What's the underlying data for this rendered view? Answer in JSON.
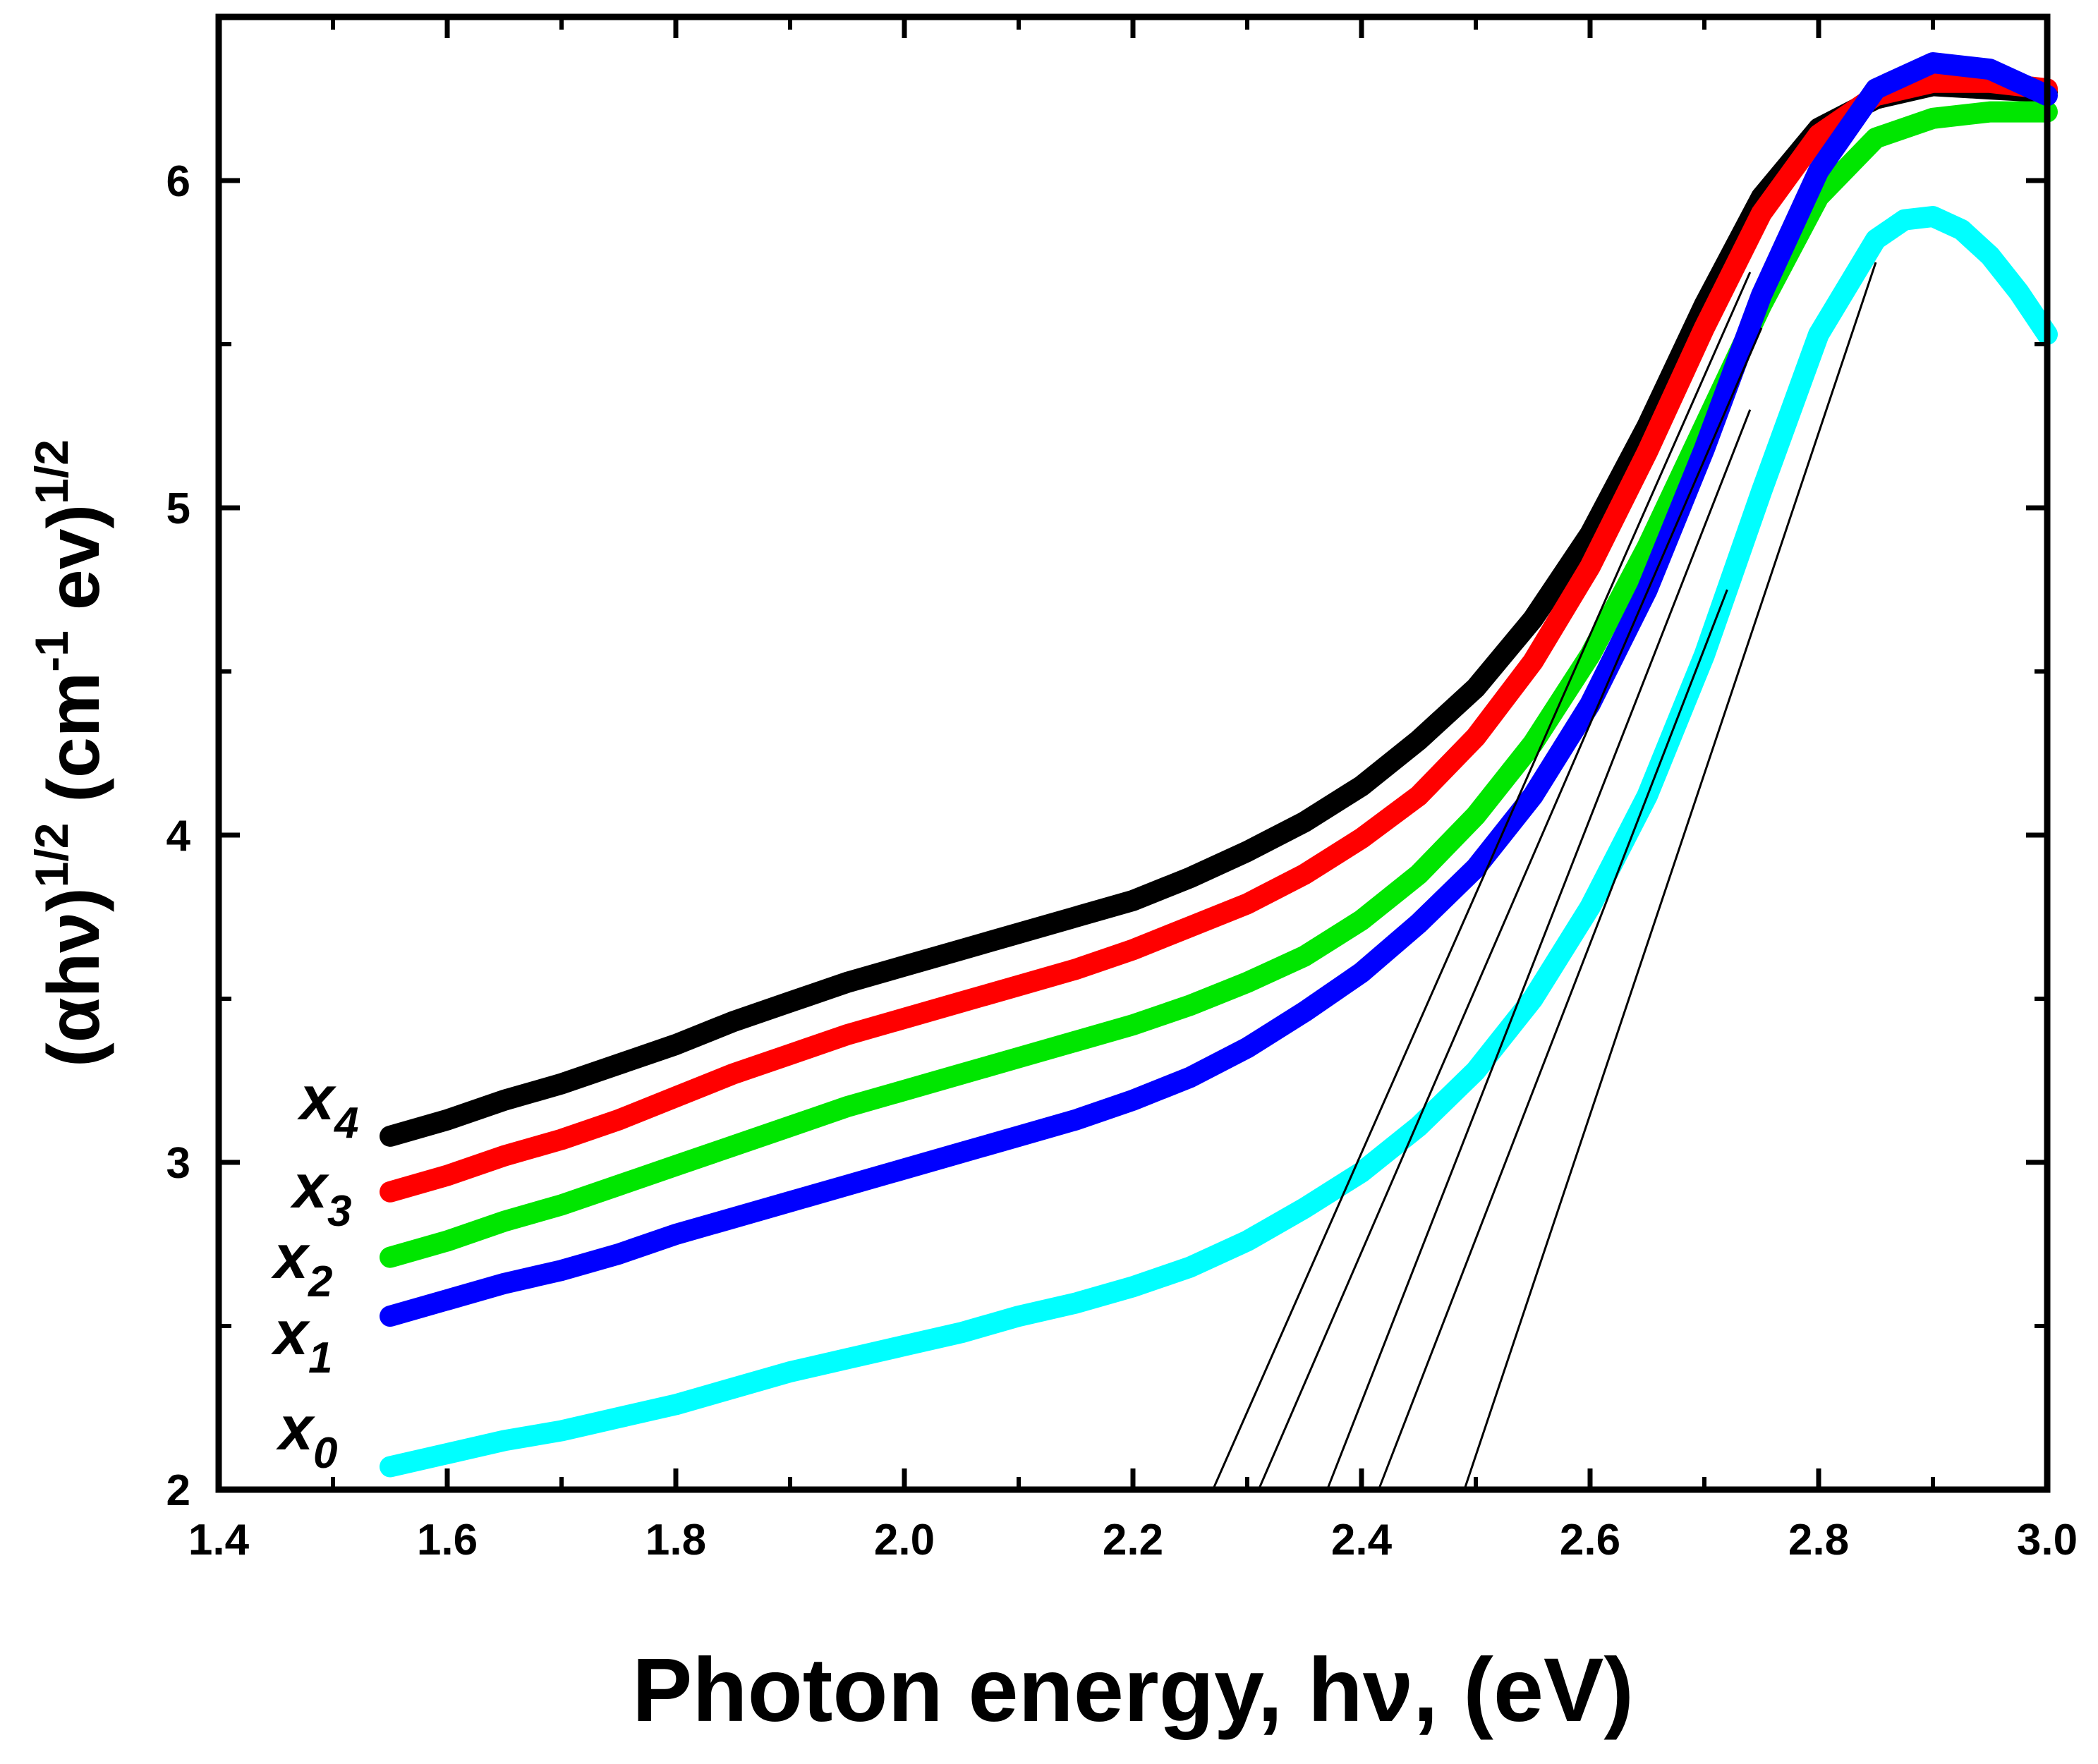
{
  "chart_data": {
    "type": "line",
    "xlabel": "Photon energy, hν,  (eV)",
    "ylabel": {
      "base": "(αhν)",
      "sup1": "1/2",
      "unit_open": " (cm",
      "unit_sup": "-1",
      "unit_close": " ev)",
      "sup2": "1/2"
    },
    "xlim": [
      1.4,
      3.0
    ],
    "ylim": [
      2,
      6.5
    ],
    "xticks": [
      1.4,
      1.6,
      1.8,
      2.0,
      2.2,
      2.4,
      2.6,
      2.8,
      3.0
    ],
    "xtick_labels": [
      "1.4",
      "1.6",
      "1.8",
      "2.0",
      "2.2",
      "2.4",
      "2.6",
      "2.8",
      "3.0"
    ],
    "yticks": [
      2,
      3,
      4,
      5,
      6
    ],
    "ytick_labels": [
      "2",
      "3",
      "4",
      "5",
      "6"
    ],
    "grid": false,
    "series": [
      {
        "name": "x4",
        "label_base": "x",
        "label_sub": "4",
        "color": "#000000",
        "x": [
          1.55,
          1.6,
          1.65,
          1.7,
          1.75,
          1.8,
          1.85,
          1.9,
          1.95,
          2.0,
          2.05,
          2.1,
          2.15,
          2.2,
          2.25,
          2.3,
          2.35,
          2.4,
          2.45,
          2.5,
          2.55,
          2.6,
          2.65,
          2.7,
          2.75,
          2.8,
          2.85,
          2.9,
          2.95,
          3.0
        ],
        "y": [
          3.08,
          3.13,
          3.19,
          3.24,
          3.3,
          3.36,
          3.43,
          3.49,
          3.55,
          3.6,
          3.65,
          3.7,
          3.75,
          3.8,
          3.87,
          3.95,
          4.04,
          4.15,
          4.29,
          4.45,
          4.66,
          4.92,
          5.25,
          5.62,
          5.95,
          6.16,
          6.25,
          6.29,
          6.28,
          6.27
        ]
      },
      {
        "name": "x3",
        "label_base": "x",
        "label_sub": "3",
        "color": "#ff0000",
        "x": [
          1.55,
          1.6,
          1.65,
          1.7,
          1.75,
          1.8,
          1.85,
          1.9,
          1.95,
          2.0,
          2.05,
          2.1,
          2.15,
          2.2,
          2.25,
          2.3,
          2.35,
          2.4,
          2.45,
          2.5,
          2.55,
          2.6,
          2.65,
          2.7,
          2.75,
          2.8,
          2.85,
          2.9,
          2.95,
          3.0
        ],
        "y": [
          2.91,
          2.96,
          3.02,
          3.07,
          3.13,
          3.2,
          3.27,
          3.33,
          3.39,
          3.44,
          3.49,
          3.54,
          3.59,
          3.65,
          3.72,
          3.79,
          3.88,
          3.99,
          4.12,
          4.3,
          4.53,
          4.82,
          5.17,
          5.55,
          5.9,
          6.14,
          6.26,
          6.3,
          6.3,
          6.28
        ]
      },
      {
        "name": "x2",
        "label_base": "x",
        "label_sub": "2",
        "color": "#00e600",
        "x": [
          1.55,
          1.6,
          1.65,
          1.7,
          1.75,
          1.8,
          1.85,
          1.9,
          1.95,
          2.0,
          2.05,
          2.1,
          2.15,
          2.2,
          2.25,
          2.3,
          2.35,
          2.4,
          2.45,
          2.5,
          2.55,
          2.6,
          2.65,
          2.7,
          2.75,
          2.8,
          2.85,
          2.9,
          2.95,
          3.0
        ],
        "y": [
          2.71,
          2.76,
          2.82,
          2.87,
          2.93,
          2.99,
          3.05,
          3.11,
          3.17,
          3.22,
          3.27,
          3.32,
          3.37,
          3.42,
          3.48,
          3.55,
          3.63,
          3.74,
          3.88,
          4.06,
          4.28,
          4.55,
          4.88,
          5.25,
          5.62,
          5.95,
          6.13,
          6.19,
          6.21,
          6.21
        ]
      },
      {
        "name": "x1",
        "label_base": "x",
        "label_sub": "1",
        "color": "#0000ff",
        "x": [
          1.55,
          1.6,
          1.65,
          1.7,
          1.75,
          1.8,
          1.85,
          1.9,
          1.95,
          2.0,
          2.05,
          2.1,
          2.15,
          2.2,
          2.25,
          2.3,
          2.35,
          2.4,
          2.45,
          2.5,
          2.55,
          2.6,
          2.65,
          2.7,
          2.75,
          2.8,
          2.85,
          2.9,
          2.95,
          3.0
        ],
        "y": [
          2.53,
          2.58,
          2.63,
          2.67,
          2.72,
          2.78,
          2.83,
          2.88,
          2.93,
          2.98,
          3.03,
          3.08,
          3.13,
          3.19,
          3.26,
          3.35,
          3.46,
          3.58,
          3.73,
          3.9,
          4.12,
          4.4,
          4.75,
          5.18,
          5.65,
          6.03,
          6.28,
          6.36,
          6.34,
          6.26
        ]
      },
      {
        "name": "x0",
        "label_base": "x",
        "label_sub": "0",
        "color": "#00ffff",
        "x": [
          1.55,
          1.6,
          1.65,
          1.7,
          1.75,
          1.8,
          1.85,
          1.9,
          1.95,
          2.0,
          2.05,
          2.1,
          2.15,
          2.2,
          2.25,
          2.3,
          2.35,
          2.4,
          2.45,
          2.5,
          2.55,
          2.6,
          2.65,
          2.7,
          2.75,
          2.8,
          2.85,
          2.875,
          2.9,
          2.925,
          2.95,
          2.975,
          3.0
        ],
        "y": [
          2.07,
          2.11,
          2.15,
          2.18,
          2.22,
          2.26,
          2.31,
          2.36,
          2.4,
          2.44,
          2.48,
          2.53,
          2.57,
          2.62,
          2.68,
          2.76,
          2.86,
          2.97,
          3.11,
          3.28,
          3.5,
          3.78,
          4.12,
          4.55,
          5.05,
          5.53,
          5.82,
          5.88,
          5.89,
          5.85,
          5.77,
          5.66,
          5.53
        ]
      }
    ],
    "fit_lines": [
      {
        "x1": 2.27,
        "y1": 2.0,
        "x2": 2.74,
        "y2": 5.72,
        "color": "#000000"
      },
      {
        "x1": 2.31,
        "y1": 2.0,
        "x2": 2.75,
        "y2": 5.55,
        "color": "#000000"
      },
      {
        "x1": 2.37,
        "y1": 2.0,
        "x2": 2.74,
        "y2": 5.3,
        "color": "#000000"
      },
      {
        "x1": 2.415,
        "y1": 2.0,
        "x2": 2.72,
        "y2": 4.75,
        "color": "#000000"
      },
      {
        "x1": 2.49,
        "y1": 2.0,
        "x2": 2.85,
        "y2": 5.75,
        "color": "#000000"
      }
    ]
  }
}
